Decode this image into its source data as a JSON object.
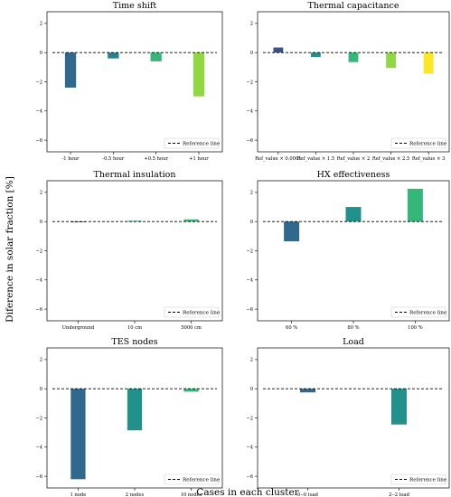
{
  "ylabel": "Diference in solar fraction [%]",
  "xlabel": "Cases in each cluster",
  "legend_label": "Reference line",
  "chart_data": [
    {
      "type": "bar",
      "title": "Time shift",
      "categories": [
        "-1 hour",
        "-0.5 hour",
        "+0.5 hour",
        "+1 hour"
      ],
      "values": [
        -2.4,
        -0.4,
        -0.6,
        -3.0
      ],
      "colors": [
        "#31688e",
        "#26828e",
        "#35b779",
        "#90d743"
      ],
      "ylim": [
        -6.8,
        2.8
      ],
      "yticks": [
        -6,
        -4,
        -2,
        0,
        2
      ],
      "legend": "bottom-right"
    },
    {
      "type": "bar",
      "title": "Thermal capacitance",
      "categories": [
        "Ref_value × 0.0001",
        "Ref_value × 1.5",
        "Ref_value × 2",
        "Ref_value × 2.5",
        "Ref_value × 3"
      ],
      "values": [
        0.35,
        -0.3,
        -0.65,
        -1.05,
        -1.45
      ],
      "colors": [
        "#3b528b",
        "#21918c",
        "#35b779",
        "#90d743",
        "#fde725"
      ],
      "ylim": [
        -6.8,
        2.8
      ],
      "yticks": [
        -6,
        -4,
        -2,
        0,
        2
      ],
      "legend": "bottom-right"
    },
    {
      "type": "bar",
      "title": "Thermal insulation",
      "categories": [
        "Underground",
        "10 cm",
        "5000 cm"
      ],
      "values": [
        0.0,
        0.05,
        0.15
      ],
      "colors": [
        "#31688e",
        "#21918c",
        "#35b779"
      ],
      "ylim": [
        -6.8,
        2.8
      ],
      "yticks": [
        -6,
        -4,
        -2,
        0,
        2
      ],
      "legend": "bottom-right"
    },
    {
      "type": "bar",
      "title": "HX effectiveness",
      "categories": [
        "60 %",
        "80 %",
        "100 %"
      ],
      "values": [
        -1.35,
        1.0,
        2.25
      ],
      "colors": [
        "#31688e",
        "#21918c",
        "#35b779"
      ],
      "ylim": [
        -6.8,
        2.8
      ],
      "yticks": [
        -6,
        -4,
        -2,
        0,
        2
      ],
      "legend": "bottom-right"
    },
    {
      "type": "bar",
      "title": "TES nodes",
      "categories": [
        "1 node",
        "2 nodes",
        "10 nodes"
      ],
      "values": [
        -6.2,
        -2.85,
        -0.2
      ],
      "colors": [
        "#31688e",
        "#21918c",
        "#35b779"
      ],
      "ylim": [
        -6.8,
        2.8
      ],
      "yticks": [
        -6,
        -4,
        -2,
        0,
        2
      ],
      "legend": "bottom-right"
    },
    {
      "type": "bar",
      "title": "Load",
      "categories": [
        "0--0 load",
        "2--2 load"
      ],
      "values": [
        -0.25,
        -2.45
      ],
      "colors": [
        "#31688e",
        "#21918c"
      ],
      "ylim": [
        -6.8,
        2.8
      ],
      "yticks": [
        -6,
        -4,
        -2,
        0,
        2
      ],
      "legend": "bottom-right"
    }
  ]
}
